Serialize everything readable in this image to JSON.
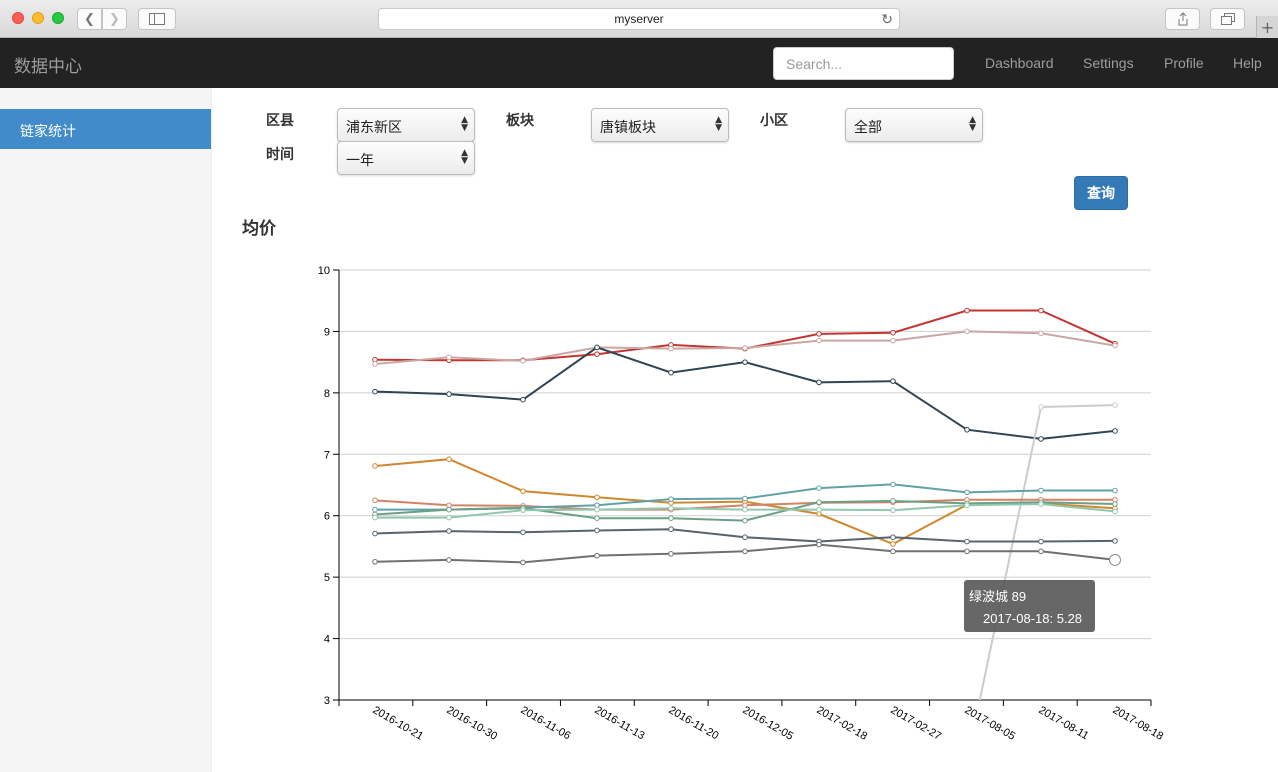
{
  "browser": {
    "url": "myserver"
  },
  "navbar": {
    "brand": "数据中心",
    "search_placeholder": "Search...",
    "links": [
      "Dashboard",
      "Settings",
      "Profile",
      "Help"
    ]
  },
  "sidebar": {
    "items": [
      {
        "label": "链家统计",
        "active": true
      }
    ]
  },
  "form": {
    "district_label": "区县",
    "district_value": "浦东新区",
    "block_label": "板块",
    "block_value": "唐镇板块",
    "community_label": "小区",
    "community_value": "全部",
    "time_label": "时间",
    "time_value": "一年",
    "query_button": "查询"
  },
  "section_title": "均价",
  "tooltip": {
    "series": "绿波城 89",
    "point": "2017-08-18: 5.28"
  },
  "chart_data": {
    "type": "line",
    "x": [
      "2016-10-21",
      "2016-10-30",
      "2016-11-06",
      "2016-11-13",
      "2016-11-20",
      "2016-12-05",
      "2017-02-18",
      "2017-02-27",
      "2017-08-05",
      "2017-08-11",
      "2017-08-18"
    ],
    "ylim": [
      3,
      10
    ],
    "yticks": [
      3,
      4,
      5,
      6,
      7,
      8,
      9,
      10
    ],
    "grid": true,
    "series": [
      {
        "color": "#c23531",
        "values": [
          8.54,
          8.53,
          8.53,
          8.63,
          8.78,
          8.72,
          8.96,
          8.98,
          9.34,
          9.34,
          8.8
        ]
      },
      {
        "color": "#c9a8a4",
        "values": [
          8.47,
          8.58,
          8.52,
          8.74,
          8.72,
          8.73,
          8.85,
          8.85,
          9.0,
          8.97,
          8.77
        ]
      },
      {
        "color": "#2f4554",
        "values": [
          8.02,
          7.98,
          7.89,
          8.74,
          8.33,
          8.5,
          8.17,
          8.19,
          7.4,
          7.25,
          7.38
        ]
      },
      {
        "color": "#cccccc",
        "values": [
          null,
          null,
          null,
          null,
          null,
          null,
          null,
          null,
          2.0,
          7.77,
          7.8
        ]
      },
      {
        "color": "#d0882f",
        "values": [
          6.81,
          6.92,
          6.4,
          6.3,
          6.21,
          6.23,
          6.03,
          5.54,
          6.18,
          6.2,
          6.12
        ]
      },
      {
        "color": "#d48265",
        "values": [
          6.25,
          6.17,
          6.16,
          6.1,
          6.1,
          6.17,
          6.21,
          6.22,
          6.26,
          6.26,
          6.26
        ]
      },
      {
        "color": "#61a0a8",
        "values": [
          6.1,
          6.1,
          6.13,
          6.17,
          6.27,
          6.28,
          6.45,
          6.51,
          6.38,
          6.41,
          6.41
        ]
      },
      {
        "color": "#6c9f85",
        "values": [
          6.02,
          6.1,
          6.12,
          5.96,
          5.96,
          5.92,
          6.22,
          6.24,
          6.2,
          6.22,
          6.19
        ]
      },
      {
        "color": "#91c7ae",
        "values": [
          5.97,
          5.97,
          6.09,
          6.1,
          6.12,
          6.1,
          6.1,
          6.09,
          6.17,
          6.19,
          6.07
        ]
      },
      {
        "color": "#546570",
        "values": [
          5.71,
          5.75,
          5.73,
          5.76,
          5.78,
          5.65,
          5.58,
          5.65,
          5.58,
          5.58,
          5.59
        ]
      },
      {
        "color": "#6e7074",
        "values": [
          5.25,
          5.28,
          5.24,
          5.35,
          5.38,
          5.42,
          5.53,
          5.42,
          5.42,
          5.42,
          5.28
        ]
      }
    ]
  }
}
